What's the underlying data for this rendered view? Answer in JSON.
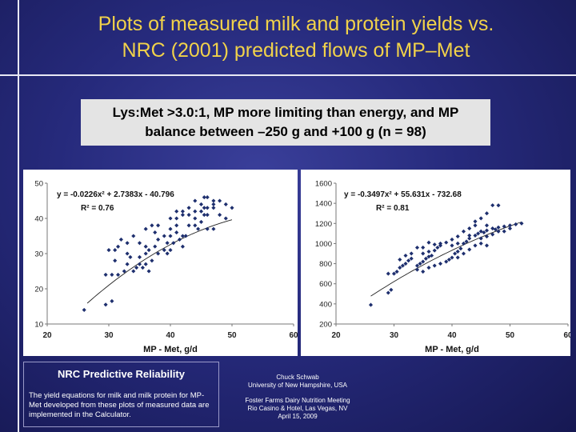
{
  "slide": {
    "title_lines": [
      "Plots of measured milk and protein yields vs.",
      "NRC (2001) predicted flows of MP–Met"
    ],
    "subtitle_lines": [
      "Lys:Met >3.0:1, MP more limiting than energy, and MP",
      "balance between –250 g and +100 g (n = 98)"
    ],
    "title_color": "#f1d24a",
    "background_color": "#262a7c"
  },
  "nrc_box": {
    "title": "NRC Predictive Reliability",
    "text": "The yield equations for milk and milk protein for MP-Met developed from these plots of measured data are implemented in the Calculator."
  },
  "credits": {
    "author_lines": [
      "Chuck Schwab",
      "University of New Hampshire, USA"
    ],
    "meeting_lines": [
      "Foster Farms Dairy Nutrition Meeting",
      "Rio Casino & Hotel, Las Vegas, NV",
      "April 15, 2009"
    ]
  },
  "chart_data": [
    {
      "type": "scatter",
      "xlabel": "MP - Met, g/d",
      "ylabel": "",
      "xlim": [
        20,
        60
      ],
      "ylim": [
        10,
        50
      ],
      "xticks": [
        20,
        30,
        40,
        50,
        60
      ],
      "yticks": [
        10,
        20,
        30,
        40,
        50
      ],
      "equation": "y = -0.0226x² + 2.7383x - 40.796",
      "r_squared": "R² = 0.76",
      "trendline": {
        "a": -0.0226,
        "b": 2.7383,
        "c": -40.796,
        "x_range": [
          26.5,
          50
        ]
      },
      "marker_color": "#1e2f6e",
      "points": [
        [
          26,
          14
        ],
        [
          29.5,
          15.5
        ],
        [
          30.5,
          16.5
        ],
        [
          29.5,
          24
        ],
        [
          30.5,
          24
        ],
        [
          31.5,
          24
        ],
        [
          32.5,
          25
        ],
        [
          33,
          27
        ],
        [
          31,
          28
        ],
        [
          33.5,
          29
        ],
        [
          30,
          31
        ],
        [
          31,
          31
        ],
        [
          31.5,
          32
        ],
        [
          33,
          30
        ],
        [
          32,
          34
        ],
        [
          34,
          25
        ],
        [
          34.5,
          26
        ],
        [
          35,
          27
        ],
        [
          35.5,
          26
        ],
        [
          36,
          27
        ],
        [
          36.5,
          25
        ],
        [
          35,
          29
        ],
        [
          36,
          30
        ],
        [
          36.5,
          31
        ],
        [
          35,
          33
        ],
        [
          36,
          32
        ],
        [
          37,
          28
        ],
        [
          37.5,
          32
        ],
        [
          38,
          34
        ],
        [
          37.5,
          36
        ],
        [
          36,
          37
        ],
        [
          38,
          30
        ],
        [
          39,
          31
        ],
        [
          39.5,
          33
        ],
        [
          39,
          35
        ],
        [
          40,
          35
        ],
        [
          40.5,
          33
        ],
        [
          40,
          37
        ],
        [
          41,
          36
        ],
        [
          41.5,
          34
        ],
        [
          42,
          35
        ],
        [
          42,
          32
        ],
        [
          42.5,
          35
        ],
        [
          43,
          38
        ],
        [
          41,
          38
        ],
        [
          40,
          31
        ],
        [
          39.5,
          30
        ],
        [
          40,
          40
        ],
        [
          41,
          40
        ],
        [
          42,
          41
        ],
        [
          43,
          41
        ],
        [
          44,
          42
        ],
        [
          44,
          40
        ],
        [
          45,
          42
        ],
        [
          45.5,
          43
        ],
        [
          44,
          38
        ],
        [
          44.5,
          37
        ],
        [
          45,
          39
        ],
        [
          45.5,
          41
        ],
        [
          46,
          41
        ],
        [
          46,
          43
        ],
        [
          47,
          43
        ],
        [
          47,
          44
        ],
        [
          48,
          41
        ],
        [
          45,
          44
        ],
        [
          44,
          45
        ],
        [
          45.5,
          46
        ],
        [
          46,
          46
        ],
        [
          47,
          45
        ],
        [
          48,
          45
        ],
        [
          49,
          44
        ],
        [
          50,
          43
        ],
        [
          49,
          40
        ],
        [
          47,
          37
        ],
        [
          46,
          37
        ],
        [
          43,
          43
        ],
        [
          42,
          42
        ],
        [
          41,
          42
        ],
        [
          38,
          38
        ],
        [
          37,
          38
        ],
        [
          34,
          35
        ],
        [
          33,
          33
        ]
      ]
    },
    {
      "type": "scatter",
      "xlabel": "MP - Met, g/d",
      "ylabel": "",
      "xlim": [
        20,
        60
      ],
      "ylim": [
        200,
        1600
      ],
      "xticks": [
        20,
        30,
        40,
        50,
        60
      ],
      "yticks": [
        200,
        400,
        600,
        800,
        1000,
        1200,
        1400,
        1600
      ],
      "equation": "y = -0.3497x² + 55.631x - 732.68",
      "r_squared": "R² = 0.81",
      "trendline": {
        "a": -0.3497,
        "b": 55.631,
        "c": -732.68,
        "x_range": [
          26,
          52
        ]
      },
      "marker_color": "#1e2f6e",
      "points": [
        [
          26,
          390
        ],
        [
          29,
          510
        ],
        [
          29.5,
          540
        ],
        [
          29,
          700
        ],
        [
          30,
          700
        ],
        [
          30.5,
          720
        ],
        [
          31,
          760
        ],
        [
          31.5,
          780
        ],
        [
          32,
          800
        ],
        [
          32.5,
          830
        ],
        [
          33,
          850
        ],
        [
          34,
          780
        ],
        [
          34.5,
          800
        ],
        [
          35,
          820
        ],
        [
          35.5,
          850
        ],
        [
          36,
          870
        ],
        [
          36.5,
          880
        ],
        [
          35,
          900
        ],
        [
          36,
          920
        ],
        [
          37,
          930
        ],
        [
          37.5,
          960
        ],
        [
          38,
          980
        ],
        [
          34,
          960
        ],
        [
          33,
          900
        ],
        [
          32,
          880
        ],
        [
          31,
          840
        ],
        [
          34,
          740
        ],
        [
          35,
          720
        ],
        [
          36,
          760
        ],
        [
          37,
          780
        ],
        [
          38,
          800
        ],
        [
          39,
          820
        ],
        [
          39.5,
          840
        ],
        [
          40,
          860
        ],
        [
          40.5,
          900
        ],
        [
          41,
          920
        ],
        [
          41.5,
          950
        ],
        [
          40,
          980
        ],
        [
          41,
          1000
        ],
        [
          42,
          1000
        ],
        [
          42.5,
          1020
        ],
        [
          43,
          1050
        ],
        [
          43,
          1080
        ],
        [
          44,
          1080
        ],
        [
          44.5,
          1100
        ],
        [
          45,
          1120
        ],
        [
          45.5,
          1110
        ],
        [
          46,
          1130
        ],
        [
          46,
          1180
        ],
        [
          47,
          1150
        ],
        [
          47.5,
          1140
        ],
        [
          48,
          1120
        ],
        [
          49,
          1170
        ],
        [
          50,
          1180
        ],
        [
          51,
          1190
        ],
        [
          47,
          1380
        ],
        [
          48,
          1380
        ],
        [
          46,
          1300
        ],
        [
          45,
          1250
        ],
        [
          44,
          1220
        ],
        [
          44,
          1180
        ],
        [
          43,
          1150
        ],
        [
          42,
          1120
        ],
        [
          41,
          1070
        ],
        [
          40,
          1040
        ],
        [
          39,
          1010
        ],
        [
          38,
          1000
        ],
        [
          37,
          990
        ],
        [
          36,
          1010
        ],
        [
          35,
          960
        ],
        [
          41,
          860
        ],
        [
          42,
          900
        ],
        [
          43,
          940
        ],
        [
          44,
          980
        ],
        [
          45,
          1050
        ],
        [
          46,
          1070
        ],
        [
          47,
          1090
        ],
        [
          48,
          1160
        ],
        [
          49,
          1120
        ],
        [
          50,
          1150
        ],
        [
          52,
          1200
        ],
        [
          45,
          1000
        ],
        [
          46,
          980
        ]
      ]
    }
  ]
}
